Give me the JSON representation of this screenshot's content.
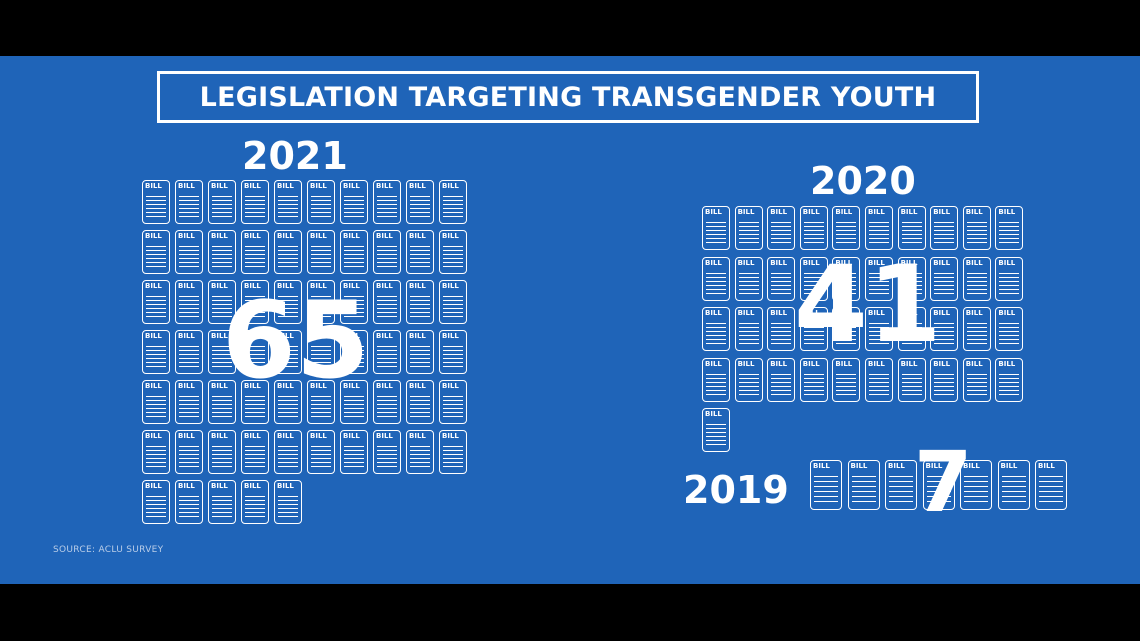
{
  "title": "LEGISLATION TARGETING TRANSGENDER YOUTH",
  "source": "SOURCE: ACLU SURVEY",
  "bill_icon_label": "BILL",
  "colors": {
    "background": "#1f64b8",
    "foreground": "#ffffff",
    "letterbox": "#000000"
  },
  "icon": "bill-document-icon",
  "chart_data": {
    "type": "pictograph",
    "title": "LEGISLATION TARGETING TRANSGENDER YOUTH",
    "categories": [
      "2021",
      "2020",
      "2019"
    ],
    "values": [
      65,
      41,
      7
    ],
    "labels": {
      "2021": "65",
      "2020": "41",
      "2019": "7"
    },
    "unit_icon": "BILL"
  }
}
